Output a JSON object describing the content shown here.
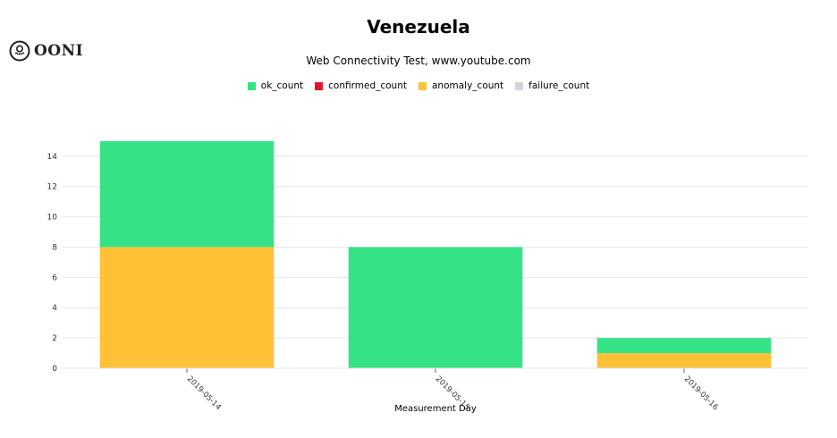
{
  "brand": {
    "logo_text": "OONI",
    "logo_icon": "ooni-octopus-icon"
  },
  "chart_data": {
    "type": "bar",
    "stacked": true,
    "title": "Venezuela",
    "subtitle": "Web Connectivity Test, www.youtube.com",
    "xlabel": "Measurement Day",
    "ylabel": "",
    "categories": [
      "2019-05-14",
      "2019-05-15",
      "2019-05-16"
    ],
    "series": [
      {
        "name": "ok_count",
        "color": "#35e386",
        "values": [
          7,
          8,
          1
        ]
      },
      {
        "name": "confirmed_count",
        "color": "#e8142d",
        "values": [
          0,
          0,
          0
        ]
      },
      {
        "name": "anomaly_count",
        "color": "#ffc136",
        "values": [
          8,
          0,
          1
        ]
      },
      {
        "name": "failure_count",
        "color": "#ced4da",
        "values": [
          0,
          0,
          0
        ]
      }
    ],
    "stack_order": [
      "anomaly_count",
      "confirmed_count",
      "failure_count",
      "ok_count"
    ],
    "yticks": [
      0,
      2,
      4,
      6,
      8,
      10,
      12,
      14
    ],
    "ylim": [
      0,
      15.7
    ],
    "grid": true,
    "legend_position": "top-center"
  }
}
